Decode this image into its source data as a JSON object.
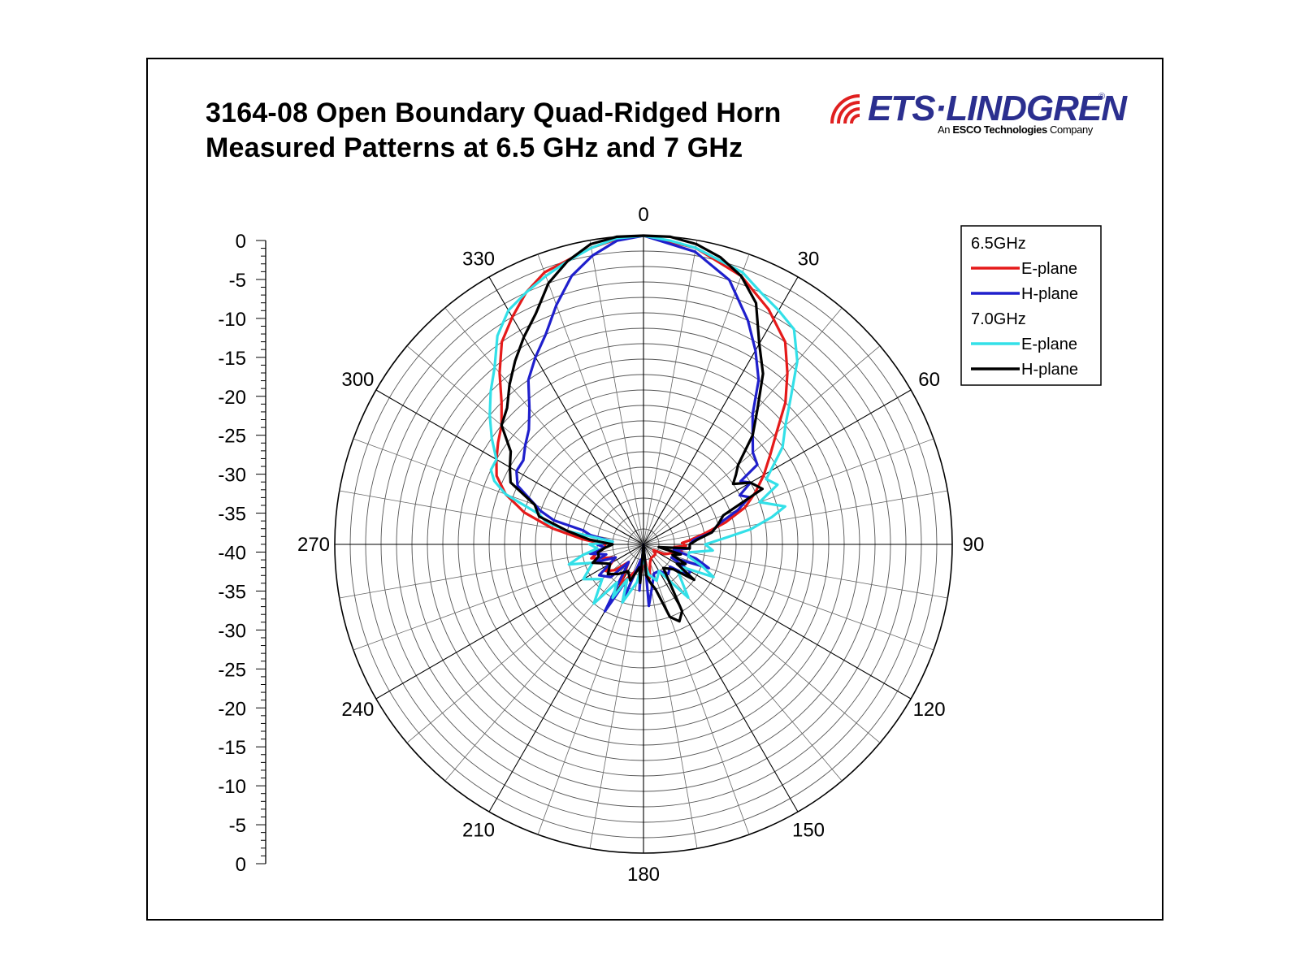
{
  "title": {
    "line1": "3164-08 Open Boundary Quad-Ridged Horn",
    "line2": "Measured Patterns at 6.5 GHz and 7 GHz"
  },
  "logo": {
    "name": "ETS·LINDGREN",
    "registered": "®",
    "tagline_prefix": "An",
    "tagline_bold": "ESCO Technologies",
    "tagline_suffix": "Company",
    "color": "#2b2f8f",
    "mark_color": "#e02020"
  },
  "chart_data": {
    "type": "polar",
    "angle_unit": "degrees",
    "angle_labels": [
      "0",
      "30",
      "60",
      "90",
      "120",
      "150",
      "180",
      "210",
      "240",
      "270",
      "300",
      "330"
    ],
    "radial_range": [
      -40,
      0
    ],
    "radial_scale_labels": [
      "0",
      "-5",
      "-10",
      "-15",
      "-20",
      "-25",
      "-30",
      "-35",
      "-40",
      "-35",
      "-30",
      "-25",
      "-20",
      "-15",
      "-10",
      "-5",
      "0"
    ],
    "grid": true,
    "legend_position": "top-right",
    "legend": [
      {
        "type": "header",
        "text": "6.5GHz"
      },
      {
        "type": "series",
        "text": "E-plane",
        "color": "#e51a1a"
      },
      {
        "type": "series",
        "text": "H-plane",
        "color": "#1f1fcc"
      },
      {
        "type": "header",
        "text": "7.0GHz"
      },
      {
        "type": "series",
        "text": "E-plane",
        "color": "#33e0e8"
      },
      {
        "type": "series",
        "text": "H-plane",
        "color": "#000000"
      }
    ],
    "series": [
      {
        "group": "6.5GHz",
        "name": "E-plane",
        "color": "#e51a1a",
        "points": [
          [
            0,
            0
          ],
          [
            10,
            -1
          ],
          [
            20,
            -3
          ],
          [
            28,
            -5.5
          ],
          [
            35,
            -8
          ],
          [
            40,
            -11
          ],
          [
            45,
            -14
          ],
          [
            50,
            -17.5
          ],
          [
            55,
            -20
          ],
          [
            60,
            -22
          ],
          [
            65,
            -24
          ],
          [
            70,
            -26
          ],
          [
            75,
            -29
          ],
          [
            80,
            -32
          ],
          [
            85,
            -34
          ],
          [
            88,
            -35
          ],
          [
            92,
            -34.5
          ],
          [
            95,
            -36
          ],
          [
            100,
            -35
          ],
          [
            105,
            -36
          ],
          [
            110,
            -36.5
          ],
          [
            115,
            -37
          ],
          [
            120,
            -38.5
          ],
          [
            130,
            -38
          ],
          [
            140,
            -38
          ],
          [
            150,
            -38
          ],
          [
            160,
            -37.5
          ],
          [
            170,
            -35.5
          ],
          [
            175,
            -38
          ],
          [
            180,
            -38
          ],
          [
            185,
            -36
          ],
          [
            190,
            -37
          ],
          [
            200,
            -36
          ],
          [
            210,
            -34
          ],
          [
            220,
            -37
          ],
          [
            228,
            -35
          ],
          [
            235,
            -34
          ],
          [
            245,
            -36
          ],
          [
            255,
            -33
          ],
          [
            260,
            -34
          ],
          [
            265,
            -35
          ],
          [
            270,
            -35
          ],
          [
            275,
            -32
          ],
          [
            280,
            -28
          ],
          [
            285,
            -24
          ],
          [
            290,
            -21
          ],
          [
            295,
            -19
          ],
          [
            300,
            -18
          ],
          [
            305,
            -17
          ],
          [
            310,
            -16
          ],
          [
            315,
            -14
          ],
          [
            320,
            -11
          ],
          [
            325,
            -8
          ],
          [
            330,
            -6
          ],
          [
            335,
            -4
          ],
          [
            340,
            -2.5
          ],
          [
            350,
            -1
          ],
          [
            355,
            -0.3
          ],
          [
            360,
            0
          ]
        ]
      },
      {
        "group": "6.5GHz",
        "name": "H-plane",
        "color": "#1f1fcc",
        "points": [
          [
            0,
            0
          ],
          [
            10,
            -1.5
          ],
          [
            18,
            -4
          ],
          [
            25,
            -8
          ],
          [
            30,
            -11
          ],
          [
            35,
            -14
          ],
          [
            40,
            -18
          ],
          [
            45,
            -20
          ],
          [
            50,
            -21.5
          ],
          [
            55,
            -22
          ],
          [
            57,
            -25
          ],
          [
            60,
            -24
          ],
          [
            63,
            -26
          ],
          [
            66,
            -25
          ],
          [
            70,
            -27
          ],
          [
            75,
            -30
          ],
          [
            80,
            -31
          ],
          [
            85,
            -33.5
          ],
          [
            90,
            -34
          ],
          [
            95,
            -34
          ],
          [
            100,
            -36
          ],
          [
            105,
            -33
          ],
          [
            110,
            -31
          ],
          [
            115,
            -36
          ],
          [
            120,
            -33
          ],
          [
            125,
            -33
          ],
          [
            130,
            -35.5
          ],
          [
            140,
            -35
          ],
          [
            150,
            -36
          ],
          [
            160,
            -36
          ],
          [
            170,
            -34
          ],
          [
            175,
            -32
          ],
          [
            180,
            -40
          ],
          [
            185,
            -34
          ],
          [
            190,
            -38
          ],
          [
            200,
            -32
          ],
          [
            205,
            -35
          ],
          [
            210,
            -30
          ],
          [
            220,
            -37
          ],
          [
            225,
            -34
          ],
          [
            235,
            -33
          ],
          [
            245,
            -36
          ],
          [
            250,
            -33
          ],
          [
            255,
            -35
          ],
          [
            260,
            -33
          ],
          [
            265,
            -35
          ],
          [
            270,
            -34
          ],
          [
            275,
            -36
          ],
          [
            280,
            -33
          ],
          [
            283,
            -32
          ],
          [
            285,
            -28
          ],
          [
            288,
            -26
          ],
          [
            292,
            -24
          ],
          [
            295,
            -22
          ],
          [
            300,
            -21
          ],
          [
            305,
            -21
          ],
          [
            310,
            -20
          ],
          [
            315,
            -19
          ],
          [
            320,
            -17
          ],
          [
            325,
            -14
          ],
          [
            330,
            -12
          ],
          [
            335,
            -10
          ],
          [
            340,
            -7
          ],
          [
            345,
            -4
          ],
          [
            350,
            -2
          ],
          [
            355,
            -0.5
          ],
          [
            360,
            0
          ]
        ]
      },
      {
        "group": "7.0GHz",
        "name": "E-plane",
        "color": "#33e0e8",
        "points": [
          [
            0,
            0
          ],
          [
            5,
            -0.5
          ],
          [
            10,
            -1
          ],
          [
            20,
            -2.5
          ],
          [
            25,
            -4
          ],
          [
            30,
            -5
          ],
          [
            35,
            -6
          ],
          [
            40,
            -9
          ],
          [
            45,
            -13
          ],
          [
            50,
            -16
          ],
          [
            55,
            -18
          ],
          [
            60,
            -21
          ],
          [
            62,
            -22
          ],
          [
            66,
            -21
          ],
          [
            70,
            -24
          ],
          [
            75,
            -21
          ],
          [
            78,
            -23
          ],
          [
            82,
            -26
          ],
          [
            85,
            -29
          ],
          [
            90,
            -32
          ],
          [
            95,
            -31
          ],
          [
            100,
            -34
          ],
          [
            105,
            -34
          ],
          [
            110,
            -32
          ],
          [
            115,
            -30
          ],
          [
            120,
            -34
          ],
          [
            130,
            -34
          ],
          [
            140,
            -31
          ],
          [
            150,
            -36
          ],
          [
            160,
            -35
          ],
          [
            170,
            -36
          ],
          [
            180,
            -38
          ],
          [
            190,
            -35
          ],
          [
            200,
            -32
          ],
          [
            205,
            -35
          ],
          [
            210,
            -32
          ],
          [
            215,
            -34
          ],
          [
            220,
            -30
          ],
          [
            230,
            -33
          ],
          [
            240,
            -31
          ],
          [
            250,
            -33
          ],
          [
            255,
            -30
          ],
          [
            260,
            -32
          ],
          [
            265,
            -34
          ],
          [
            270,
            -33
          ],
          [
            275,
            -36
          ],
          [
            280,
            -30
          ],
          [
            283,
            -27
          ],
          [
            286,
            -26
          ],
          [
            290,
            -21
          ],
          [
            293,
            -19
          ],
          [
            296,
            -18
          ],
          [
            300,
            -18
          ],
          [
            305,
            -16
          ],
          [
            310,
            -14
          ],
          [
            315,
            -12
          ],
          [
            320,
            -10
          ],
          [
            325,
            -7
          ],
          [
            330,
            -5
          ],
          [
            335,
            -4
          ],
          [
            340,
            -3
          ],
          [
            345,
            -2
          ],
          [
            350,
            -1
          ],
          [
            355,
            -0.2
          ],
          [
            360,
            0
          ]
        ]
      },
      {
        "group": "7.0GHz",
        "name": "H-plane",
        "color": "#000000",
        "points": [
          [
            0,
            0
          ],
          [
            5,
            0
          ],
          [
            10,
            -0.5
          ],
          [
            15,
            -1.5
          ],
          [
            20,
            -3
          ],
          [
            25,
            -5.5
          ],
          [
            30,
            -10
          ],
          [
            35,
            -13
          ],
          [
            40,
            -17
          ],
          [
            45,
            -20
          ],
          [
            50,
            -24
          ],
          [
            53,
            -25
          ],
          [
            56,
            -26
          ],
          [
            60,
            -24
          ],
          [
            65,
            -23
          ],
          [
            70,
            -29
          ],
          [
            75,
            -30
          ],
          [
            80,
            -31
          ],
          [
            85,
            -33
          ],
          [
            90,
            -34
          ],
          [
            95,
            -34
          ],
          [
            100,
            -38
          ],
          [
            105,
            -35
          ],
          [
            110,
            -36
          ],
          [
            115,
            -34
          ],
          [
            120,
            -35
          ],
          [
            125,
            -32
          ],
          [
            130,
            -35
          ],
          [
            140,
            -36
          ],
          [
            150,
            -30
          ],
          [
            155,
            -29
          ],
          [
            160,
            -30
          ],
          [
            165,
            -34
          ],
          [
            170,
            -35
          ],
          [
            175,
            -36
          ],
          [
            180,
            -40
          ],
          [
            185,
            -35
          ],
          [
            190,
            -37
          ],
          [
            200,
            -35
          ],
          [
            210,
            -36
          ],
          [
            220,
            -35
          ],
          [
            230,
            -34
          ],
          [
            240,
            -35
          ],
          [
            250,
            -33
          ],
          [
            255,
            -34
          ],
          [
            260,
            -34
          ],
          [
            265,
            -35
          ],
          [
            270,
            -36
          ],
          [
            275,
            -33
          ],
          [
            280,
            -30
          ],
          [
            285,
            -26
          ],
          [
            290,
            -25
          ],
          [
            295,
            -21
          ],
          [
            300,
            -20
          ],
          [
            305,
            -19
          ],
          [
            310,
            -16
          ],
          [
            315,
            -15
          ],
          [
            320,
            -13
          ],
          [
            325,
            -11
          ],
          [
            330,
            -9
          ],
          [
            335,
            -7
          ],
          [
            340,
            -4
          ],
          [
            345,
            -2
          ],
          [
            350,
            -0.5
          ],
          [
            355,
            0
          ],
          [
            360,
            0
          ]
        ]
      }
    ]
  }
}
